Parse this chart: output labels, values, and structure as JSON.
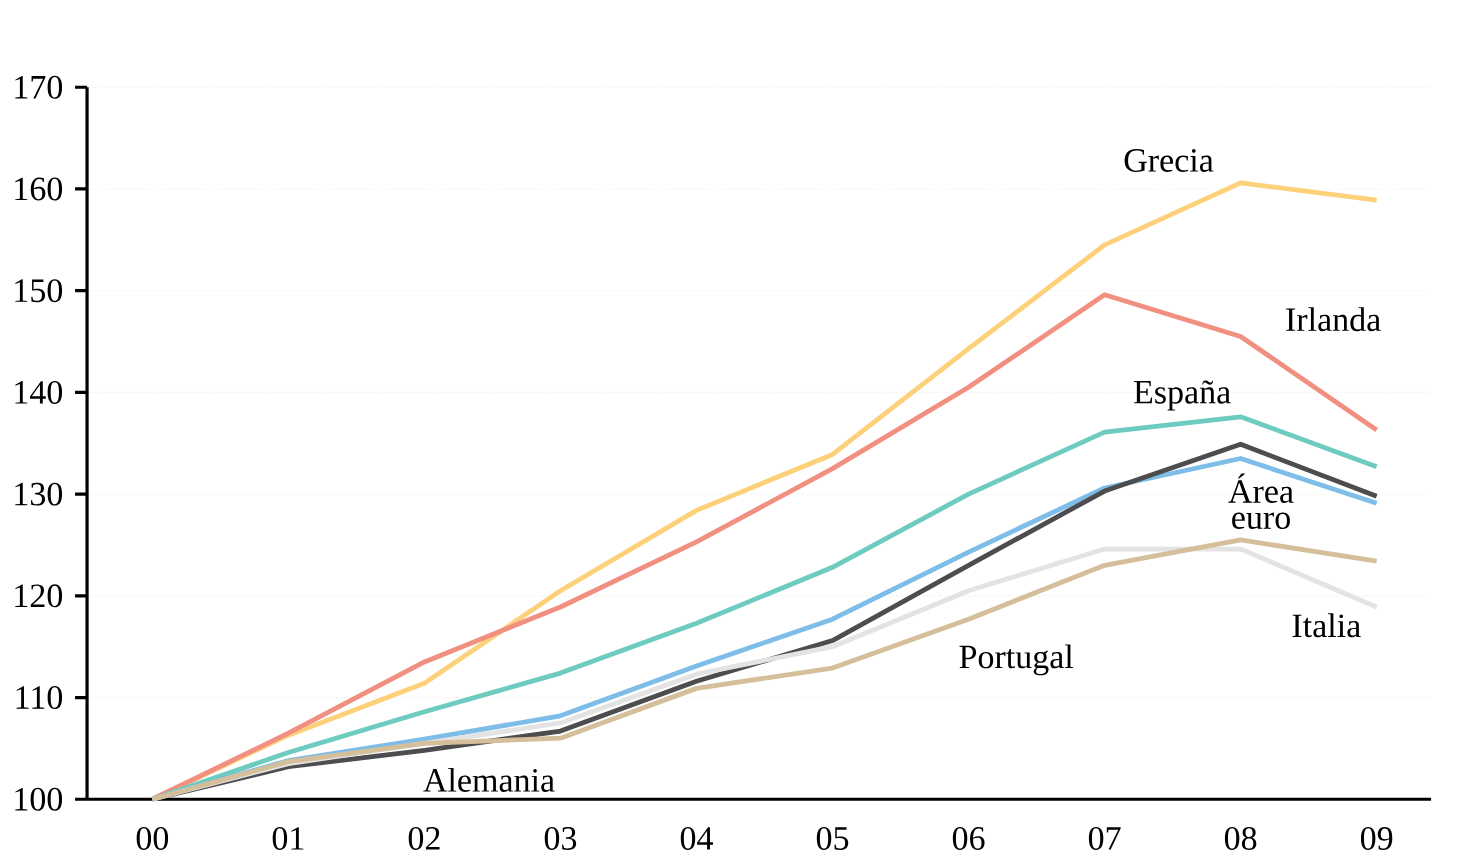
{
  "chart_data": {
    "type": "line",
    "categories": [
      "00",
      "01",
      "02",
      "03",
      "04",
      "05",
      "06",
      "07",
      "08",
      "09"
    ],
    "series": [
      {
        "name": "Grecia",
        "color": "#fdd07a",
        "values": [
          100,
          106.3,
          111.4,
          120.5,
          128.4,
          133.9,
          144.3,
          154.5,
          160.6,
          158.9
        ]
      },
      {
        "name": "Irlanda",
        "color": "#f18f80",
        "values": [
          100,
          106.5,
          113.5,
          118.9,
          125.3,
          132.5,
          140.5,
          149.6,
          145.5,
          136.3
        ]
      },
      {
        "name": "España",
        "color": "#6ecbbf",
        "values": [
          100,
          104.6,
          108.6,
          112.4,
          117.3,
          122.8,
          130,
          136.1,
          137.6,
          132.7
        ]
      },
      {
        "name": "Área euro",
        "color": "#7dbde8",
        "values": [
          100,
          103.8,
          105.9,
          108.2,
          113.1,
          117.7,
          124.3,
          130.6,
          133.5,
          129.1
        ]
      },
      {
        "name": "Alemania",
        "color": "#4d4d4f",
        "values": [
          100,
          103.2,
          104.8,
          106.7,
          111.6,
          115.6,
          123,
          130.3,
          134.9,
          129.8
        ]
      },
      {
        "name": "Italia",
        "color": "#e3e3e3",
        "values": [
          100,
          103.5,
          105.5,
          107.5,
          112.3,
          115,
          120.5,
          124.6,
          124.6,
          118.9
        ]
      },
      {
        "name": "Portugal",
        "color": "#d4bf9a",
        "values": [
          100,
          103.7,
          105.5,
          106,
          110.9,
          112.9,
          117.7,
          123,
          125.5,
          123.4
        ]
      }
    ],
    "ylim": [
      100,
      170
    ],
    "yticks": [
      100,
      110,
      120,
      130,
      140,
      150,
      160,
      170
    ],
    "grid": "y",
    "legend": false,
    "marker": "none",
    "line_style": "solid"
  }
}
